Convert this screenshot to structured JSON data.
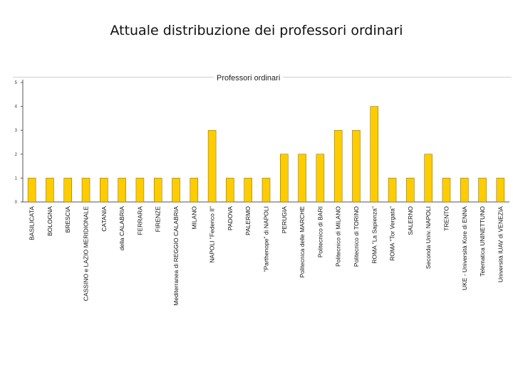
{
  "slide": {
    "title": "Attuale distribuzione dei professori ordinari"
  },
  "chart_data": {
    "type": "bar",
    "title": "Professori ordinari",
    "xlabel": "",
    "ylabel": "",
    "ylim": [
      0,
      5
    ],
    "yticks": [
      0,
      1,
      2,
      3,
      4,
      5
    ],
    "grid": false,
    "bar_color": "#FFCC00",
    "categories": [
      "BASILICATA",
      "BOLOGNA",
      "BRESCIA",
      "CASSINO e LAZIO MERIDIONALE",
      "CATANIA",
      "della CALABRIA",
      "FERRARA",
      "FIRENZE",
      "Mediterranea di REGGIO CALABRIA",
      "MILANO",
      "NAPOLI \"Federico II\"",
      "PADOVA",
      "PALERMO",
      "\"Parthenope\" di NAPOLI",
      "PERUGIA",
      "Politecnica delle MARCHE",
      "Politecnico di BARI",
      "Politecnico di MILANO",
      "Politecnico di TORINO",
      "ROMA \"La Sapienza\"",
      "ROMA \"Tor Vergata\"",
      "SALERNO",
      "Seconda Univ. NAPOLI",
      "TRENTO",
      "UKE - Università Kore di ENNA",
      "Telematica UNINETTUNO",
      "Università IUAV di VENEZIA"
    ],
    "values": [
      1,
      1,
      1,
      1,
      1,
      1,
      1,
      1,
      1,
      1,
      3,
      1,
      1,
      1,
      2,
      2,
      2,
      3,
      3,
      4,
      1,
      1,
      2,
      1,
      1,
      1,
      1
    ]
  }
}
